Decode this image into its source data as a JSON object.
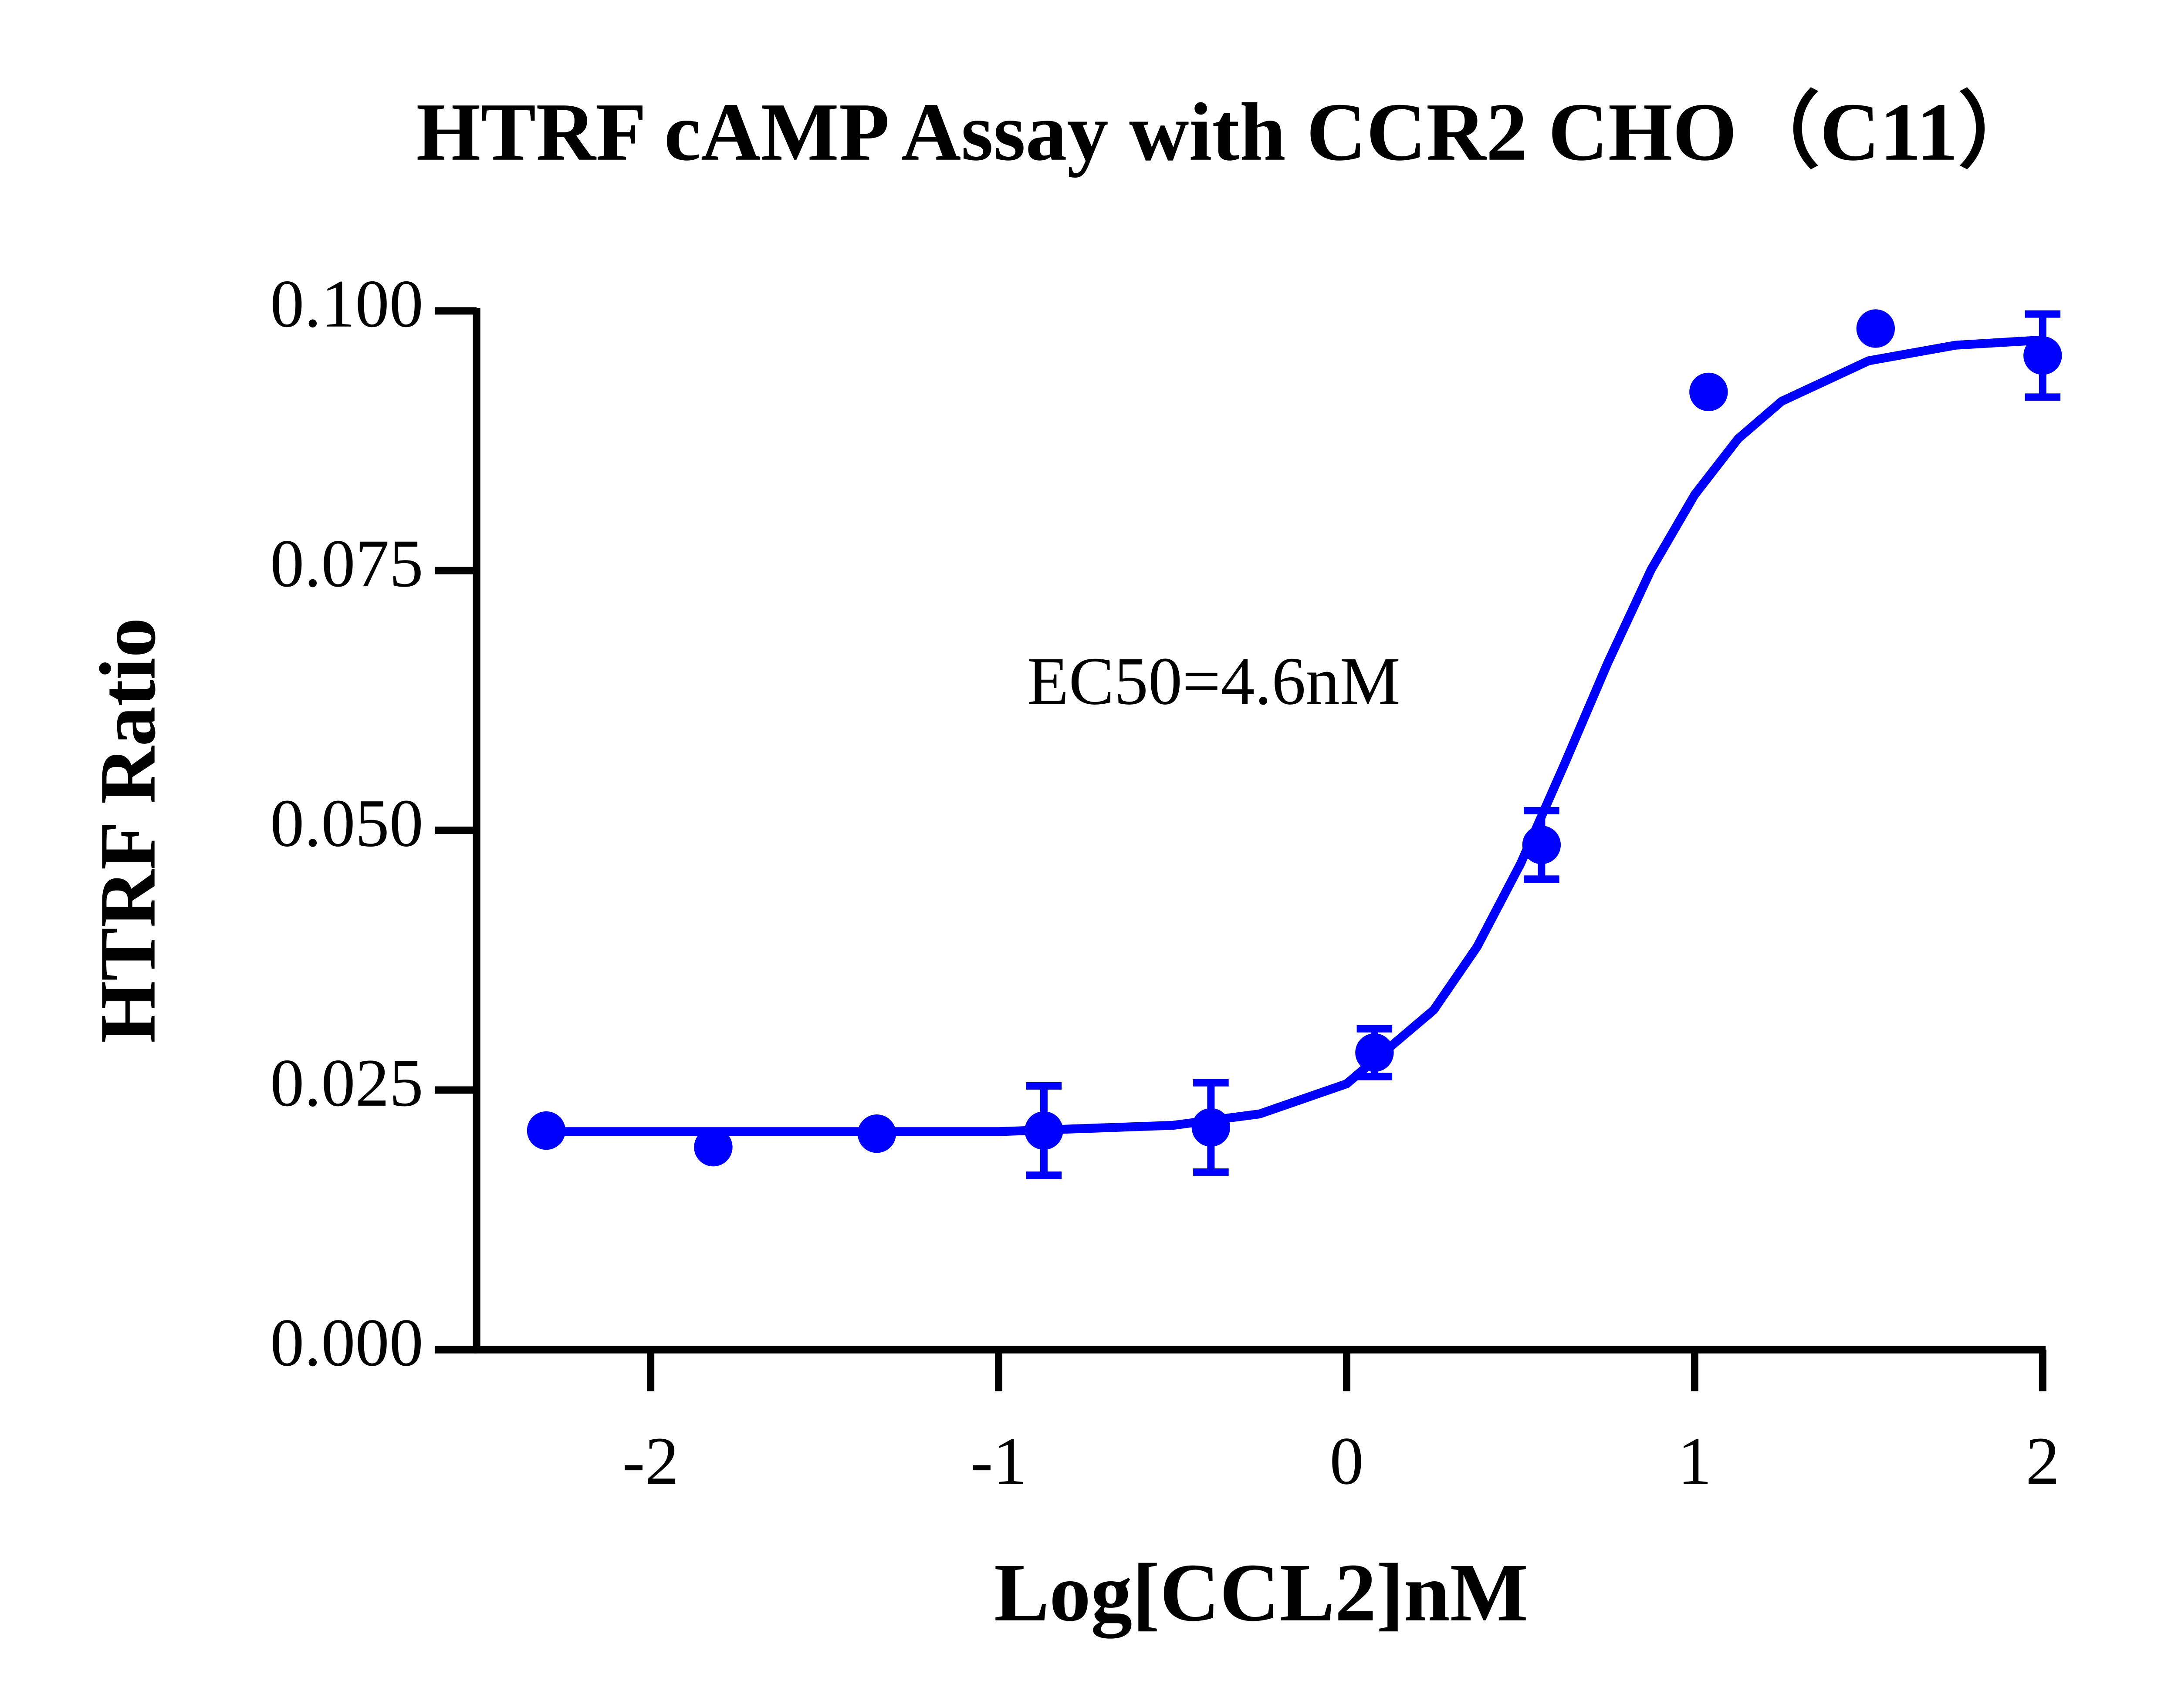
{
  "chart_data": {
    "type": "scatter",
    "title": "HTRF cAMP Assay with CCR2 CHO（C11）",
    "x_label": "Log[CCL2]nM",
    "y_label": "HTRF Ratio",
    "annotation": "EC50=4.6nM",
    "xlim": [
      -2.5,
      2
    ],
    "ylim": [
      0,
      0.1
    ],
    "xticks": [
      -2,
      -1,
      0,
      1,
      2
    ],
    "yticks": [
      {
        "value": 0,
        "label": "0.000"
      },
      {
        "value": 0.025,
        "label": "0.025"
      },
      {
        "value": 0.05,
        "label": "0.050"
      },
      {
        "value": 0.075,
        "label": "0.075"
      },
      {
        "value": 0.1,
        "label": "0.100"
      }
    ],
    "series": [
      {
        "type": "scatter",
        "color": "#0000ff",
        "x": [
          -2.3,
          -1.82,
          -1.35,
          -0.87,
          -0.39,
          0.08,
          0.56,
          1.04,
          1.52,
          2.0
        ],
        "values": [
          0.0211,
          0.0195,
          0.0208,
          0.0211,
          0.0214,
          0.0286,
          0.0486,
          0.0922,
          0.0983,
          0.0957
        ],
        "errors": [
          0,
          0,
          0,
          0.0043,
          0.0043,
          0.0023,
          0.0033,
          0,
          0,
          0.004
        ]
      },
      {
        "type": "line",
        "color": "#0000ff",
        "x": [
          -2.3,
          -2.0,
          -1.5,
          -1.0,
          -0.5,
          -0.25,
          0,
          0.25,
          0.375,
          0.5,
          0.625,
          0.75,
          0.875,
          1.0,
          1.125,
          1.25,
          1.5,
          1.75,
          2.0
        ],
        "values": [
          0.021,
          0.021,
          0.021,
          0.021,
          0.0216,
          0.0227,
          0.0256,
          0.0327,
          0.0388,
          0.0468,
          0.0563,
          0.0661,
          0.0751,
          0.0823,
          0.0877,
          0.0913,
          0.0952,
          0.0967,
          0.0972
        ]
      }
    ]
  }
}
